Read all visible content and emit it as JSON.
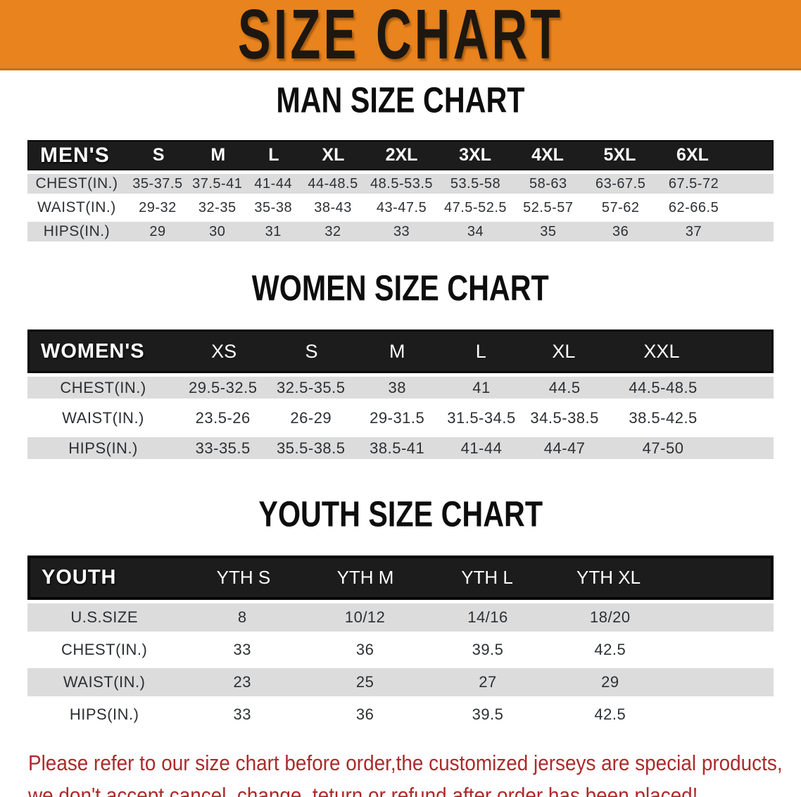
{
  "banner": {
    "title": "SIZE CHART",
    "bg_color": "#E8831D",
    "text_color": "#1D1710"
  },
  "colors": {
    "banner_orange": "#E8831D",
    "table_header_bar": "#1C1C1C",
    "stripe_gray": "#DCDCDD",
    "value_text": "#2C3033",
    "notice_red": "#AD2A2B"
  },
  "sections": [
    {
      "heading": "MAN SIZE CHART",
      "table": {
        "header_label": "MEN'S",
        "columns": [
          "S",
          "M",
          "L",
          "XL",
          "2XL",
          "3XL",
          "4XL",
          "5XL",
          "6XL"
        ],
        "rows": [
          {
            "label": "CHEST(IN.)",
            "values": [
              "35-37.5",
              "37.5-41",
              "41-44",
              "44-48.5",
              "48.5-53.5",
              "53.5-58",
              "58-63",
              "63-67.5",
              "67.5-72"
            ]
          },
          {
            "label": "WAIST(IN.)",
            "values": [
              "29-32",
              "32-35",
              "35-38",
              "38-43",
              "43-47.5",
              "47.5-52.5",
              "52.5-57",
              "57-62",
              "62-66.5"
            ]
          },
          {
            "label": "HIPS(IN.)",
            "values": [
              "29",
              "30",
              "31",
              "32",
              "33",
              "34",
              "35",
              "36",
              "37"
            ]
          }
        ]
      }
    },
    {
      "heading": "WOMEN SIZE CHART",
      "table": {
        "header_label": "WOMEN'S",
        "columns": [
          "XS",
          "S",
          "M",
          "L",
          "XL",
          "XXL"
        ],
        "rows": [
          {
            "label": "CHEST(IN.)",
            "values": [
              "29.5-32.5",
              "32.5-35.5",
              "38",
              "41",
              "44.5",
              "44.5-48.5"
            ]
          },
          {
            "label": "WAIST(IN.)",
            "values": [
              "23.5-26",
              "26-29",
              "29-31.5",
              "31.5-34.5",
              "34.5-38.5",
              "38.5-42.5"
            ]
          },
          {
            "label": "HIPS(IN.)",
            "values": [
              "33-35.5",
              "35.5-38.5",
              "38.5-41",
              "41-44",
              "44-47",
              "47-50"
            ]
          }
        ]
      }
    },
    {
      "heading": "YOUTH SIZE CHART",
      "table": {
        "header_label": "YOUTH",
        "columns": [
          "YTH S",
          "YTH M",
          "YTH L",
          "YTH XL"
        ],
        "rows": [
          {
            "label": "U.S.SIZE",
            "values": [
              "8",
              "10/12",
              "14/16",
              "18/20"
            ]
          },
          {
            "label": "CHEST(IN.)",
            "values": [
              "33",
              "36",
              "39.5",
              "42.5"
            ]
          },
          {
            "label": "WAIST(IN.)",
            "values": [
              "23",
              "25",
              "27",
              "29"
            ]
          },
          {
            "label": "HIPS(IN.)",
            "values": [
              "33",
              "36",
              "39.5",
              "42.5"
            ]
          }
        ]
      }
    }
  ],
  "notice": {
    "line1": "Please refer to our size chart before order,the customized jerseys are special products,",
    "line2": "we don't accept cancel, change, teturn or refund after order has been placed!"
  }
}
